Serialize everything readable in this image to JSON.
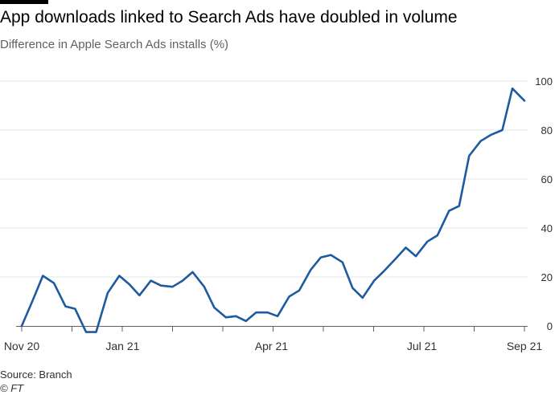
{
  "title": "App downloads linked to Search Ads have doubled in volume",
  "subtitle": "Difference in Apple Search Ads installs (%)",
  "source": "Source: Branch",
  "credit": "© FT",
  "colors": {
    "line": "#1e5aa0",
    "grid": "#e6e6e6",
    "axis": "#66605c",
    "tick_text": "#33302e"
  },
  "chart_data": {
    "type": "line",
    "title": "App downloads linked to Search Ads have doubled in volume",
    "subtitle": "Difference in Apple Search Ads installs (%)",
    "xlabel": "",
    "ylabel": "",
    "x_start": "2020-11-01",
    "x_end": "2021-09-01",
    "ylim": [
      0,
      100
    ],
    "yticks": [
      0,
      20,
      40,
      60,
      80,
      100
    ],
    "xticks": [
      {
        "label": "Nov 20",
        "date": "2020-11-01"
      },
      {
        "label": "Jan 21",
        "date": "2021-01-01"
      },
      {
        "label": "Apr 21",
        "date": "2021-04-01"
      },
      {
        "label": "Jul 21",
        "date": "2021-07-01"
      },
      {
        "label": "Sep 21",
        "date": "2021-09-01"
      }
    ],
    "series": [
      {
        "name": "Difference in Apple Search Ads installs (%)",
        "x": [
          0.0,
          0.023,
          0.042,
          0.064,
          0.087,
          0.106,
          0.128,
          0.148,
          0.171,
          0.194,
          0.214,
          0.234,
          0.257,
          0.277,
          0.3,
          0.32,
          0.34,
          0.363,
          0.383,
          0.406,
          0.426,
          0.446,
          0.466,
          0.489,
          0.509,
          0.532,
          0.552,
          0.575,
          0.595,
          0.615,
          0.638,
          0.658,
          0.678,
          0.701,
          0.721,
          0.744,
          0.764,
          0.784,
          0.807,
          0.827,
          0.85,
          0.87,
          0.89,
          0.913,
          0.933,
          0.956,
          0.976,
          1.0
        ],
        "values": [
          0,
          11,
          20.5,
          17.5,
          8,
          7,
          -2.5,
          -2.5,
          13.5,
          20.5,
          17,
          12.5,
          18.5,
          16.5,
          16,
          18.5,
          22,
          16,
          7.5,
          3.5,
          4,
          2,
          5.5,
          5.5,
          4,
          12,
          14.5,
          23,
          28,
          29,
          26,
          15.5,
          11.5,
          18.5,
          22.5,
          27.5,
          32,
          28.5,
          34.5,
          37,
          47,
          49,
          69.5,
          75.5,
          78,
          80,
          97,
          92
        ]
      }
    ]
  }
}
